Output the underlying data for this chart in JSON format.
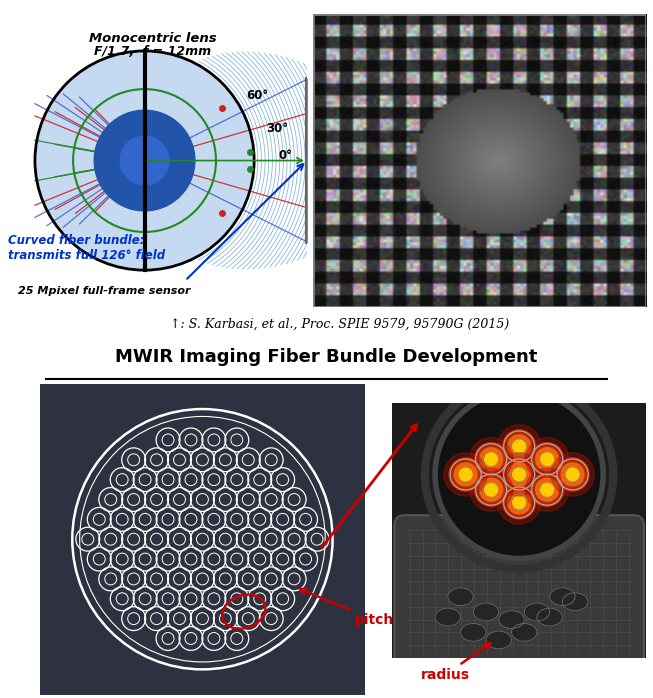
{
  "title_bottom": "MWIR Imaging Fiber Bundle Development",
  "citation": "↑: S. Karbasi, et al., Proc. SPIE 9579, 95790G (2015)",
  "label_pitch": "pitch",
  "label_radius": "radius",
  "fig_width": 6.53,
  "fig_height": 6.98,
  "dpi": 100,
  "bg_color": "#ffffff",
  "bottom_panel_bg": "#2e3240",
  "label_color_red": "#cc0000",
  "monocentric_line1": "Monocentric lens",
  "monocentric_line2": "F/1.7,  f = 12mm",
  "angle_60": "60°",
  "angle_30": "30°",
  "angle_0": "0°",
  "curved_bundle_text": "Curved fiber bundle:\ntransmits full 126° field",
  "sensor_text": "25 Mpixel full-frame sensor"
}
